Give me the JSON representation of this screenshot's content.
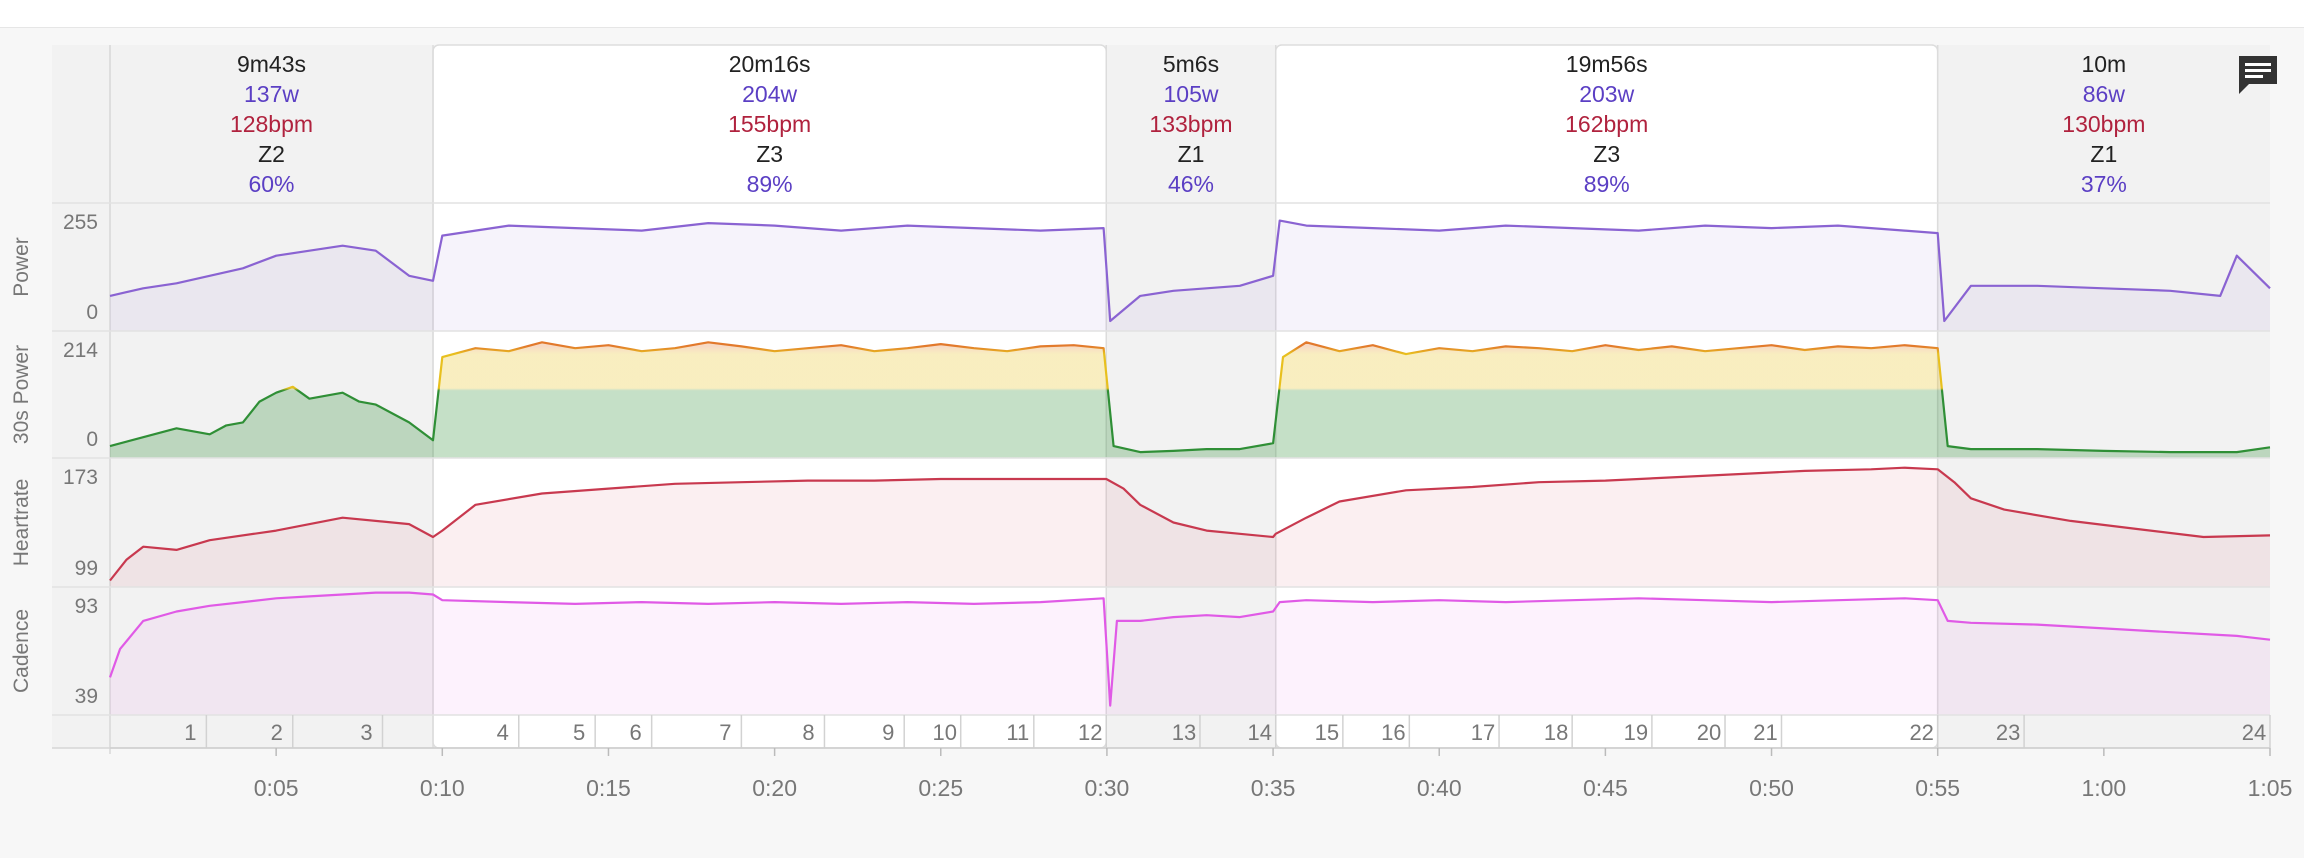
{
  "colors": {
    "power": "#8a63d2",
    "heartrate": "#c8394f",
    "cadence": "#e05ae6",
    "zone_green": "#2f8f36",
    "zone_yellow": "#e8c01e",
    "zone_orange": "#e2792c",
    "label_purple": "#5b3fc4",
    "label_hr": "#b0223e",
    "label_dark": "#1f1f3a",
    "highlight_bg": "#ffffff",
    "panel_bg": "#f2f2f2"
  },
  "comment_icon": "comment-icon",
  "chart_data": {
    "type": "line",
    "x_unit": "minutes",
    "x_range": [
      0,
      65
    ],
    "x_ticks": [
      {
        "t": 5,
        "label": "0:05"
      },
      {
        "t": 10,
        "label": "0:10"
      },
      {
        "t": 15,
        "label": "0:15"
      },
      {
        "t": 20,
        "label": "0:20"
      },
      {
        "t": 25,
        "label": "0:25"
      },
      {
        "t": 30,
        "label": "0:30"
      },
      {
        "t": 35,
        "label": "0:35"
      },
      {
        "t": 40,
        "label": "0:40"
      },
      {
        "t": 45,
        "label": "0:45"
      },
      {
        "t": 50,
        "label": "0:50"
      },
      {
        "t": 55,
        "label": "0:55"
      },
      {
        "t": 60,
        "label": "1:00"
      },
      {
        "t": 65,
        "label": "1:05"
      }
    ],
    "intervals": [
      {
        "start": 0,
        "end": 9.72,
        "duration": "9m43s",
        "power": "137w",
        "hr": "128bpm",
        "zone": "Z2",
        "pct": "60%",
        "highlight": false
      },
      {
        "start": 9.72,
        "end": 29.98,
        "duration": "20m16s",
        "power": "204w",
        "hr": "155bpm",
        "zone": "Z3",
        "pct": "89%",
        "highlight": true
      },
      {
        "start": 29.98,
        "end": 35.08,
        "duration": "5m6s",
        "power": "105w",
        "hr": "133bpm",
        "zone": "Z1",
        "pct": "46%",
        "highlight": false
      },
      {
        "start": 35.08,
        "end": 55.0,
        "duration": "19m56s",
        "power": "203w",
        "hr": "162bpm",
        "zone": "Z3",
        "pct": "89%",
        "highlight": true
      },
      {
        "start": 55.0,
        "end": 65.0,
        "duration": "10m",
        "power": "86w",
        "hr": "130bpm",
        "zone": "Z1",
        "pct": "37%",
        "highlight": false
      }
    ],
    "laps": [
      {
        "label": "1",
        "start": 0,
        "end": 2.9
      },
      {
        "label": "2",
        "start": 2.9,
        "end": 5.5
      },
      {
        "label": "3",
        "start": 5.5,
        "end": 8.2
      },
      {
        "label": "4",
        "start": 9.72,
        "end": 12.3
      },
      {
        "label": "5",
        "start": 12.3,
        "end": 14.6
      },
      {
        "label": "6",
        "start": 14.6,
        "end": 16.3
      },
      {
        "label": "7",
        "start": 16.3,
        "end": 19.0
      },
      {
        "label": "8",
        "start": 19.0,
        "end": 21.5
      },
      {
        "label": "9",
        "start": 21.5,
        "end": 23.9
      },
      {
        "label": "10",
        "start": 23.9,
        "end": 25.6
      },
      {
        "label": "11",
        "start": 25.6,
        "end": 27.8
      },
      {
        "label": "12",
        "start": 27.8,
        "end": 29.98
      },
      {
        "label": "13",
        "start": 29.98,
        "end": 32.8
      },
      {
        "label": "14",
        "start": 32.8,
        "end": 35.08
      },
      {
        "label": "15",
        "start": 35.08,
        "end": 37.1
      },
      {
        "label": "16",
        "start": 37.1,
        "end": 39.1
      },
      {
        "label": "17",
        "start": 39.1,
        "end": 41.8
      },
      {
        "label": "18",
        "start": 41.8,
        "end": 44.0
      },
      {
        "label": "19",
        "start": 44.0,
        "end": 46.4
      },
      {
        "label": "20",
        "start": 46.4,
        "end": 48.6
      },
      {
        "label": "21",
        "start": 48.6,
        "end": 50.3
      },
      {
        "label": "22",
        "start": 50.3,
        "end": 55.0
      },
      {
        "label": "23",
        "start": 55.0,
        "end": 57.6
      },
      {
        "label": "24",
        "start": 57.6,
        "end": 65.0
      }
    ],
    "panels": [
      {
        "id": "power",
        "label": "Power",
        "tick_min": "0",
        "tick_max": "255",
        "ymin": 0,
        "ymax": 255,
        "color": "#8a63d2",
        "x": [
          0,
          1,
          2,
          3,
          4,
          5,
          6,
          7,
          8,
          9,
          9.72,
          10,
          12,
          14,
          16,
          18,
          20,
          22,
          24,
          26,
          28,
          29.9,
          30.1,
          31,
          32,
          33,
          34,
          35,
          35.2,
          36,
          38,
          40,
          42,
          44,
          46,
          48,
          50,
          52,
          54,
          55,
          55.2,
          56,
          58,
          60,
          62,
          63.5,
          64,
          65
        ],
        "y": [
          70,
          85,
          95,
          110,
          125,
          150,
          160,
          170,
          160,
          110,
          100,
          190,
          210,
          205,
          200,
          215,
          210,
          200,
          210,
          205,
          200,
          205,
          20,
          70,
          80,
          85,
          90,
          110,
          220,
          210,
          205,
          200,
          210,
          205,
          200,
          210,
          205,
          210,
          200,
          195,
          20,
          90,
          90,
          85,
          80,
          70,
          150,
          85
        ]
      },
      {
        "id": "power30",
        "label": "30s Power",
        "tick_min": "0",
        "tick_max": "214",
        "ymin": 0,
        "ymax": 214,
        "color": "#2f8f36",
        "zones": true,
        "x": [
          0,
          1,
          2,
          3,
          3.5,
          4,
          4.5,
          5,
          5.5,
          6,
          7,
          7.5,
          8,
          9,
          9.72,
          10,
          11,
          12,
          13,
          14,
          15,
          16,
          17,
          18,
          19,
          20,
          21,
          22,
          23,
          24,
          25,
          26,
          27,
          28,
          29,
          29.9,
          30.2,
          31,
          32,
          33,
          34,
          35,
          35.3,
          36,
          37,
          38,
          39,
          40,
          41,
          42,
          43,
          44,
          45,
          46,
          47,
          48,
          49,
          50,
          51,
          52,
          53,
          54,
          55,
          55.3,
          56,
          58,
          60,
          62,
          64,
          65
        ],
        "y": [
          20,
          35,
          50,
          40,
          55,
          60,
          95,
          110,
          120,
          100,
          110,
          95,
          90,
          60,
          30,
          170,
          185,
          180,
          195,
          185,
          190,
          180,
          185,
          195,
          188,
          180,
          185,
          190,
          180,
          185,
          192,
          185,
          180,
          188,
          190,
          185,
          20,
          10,
          12,
          15,
          15,
          25,
          170,
          195,
          180,
          190,
          175,
          185,
          180,
          188,
          185,
          180,
          190,
          182,
          188,
          180,
          185,
          190,
          182,
          188,
          185,
          190,
          185,
          20,
          15,
          15,
          12,
          10,
          10,
          18
        ]
      },
      {
        "id": "heartrate",
        "label": "Heartrate",
        "tick_min": "99",
        "tick_max": "173",
        "ymin": 95,
        "ymax": 175,
        "color": "#c8394f",
        "x": [
          0,
          0.5,
          1,
          2,
          3,
          5,
          7,
          9,
          9.72,
          10,
          11,
          13,
          15,
          17,
          19,
          21,
          23,
          25,
          27,
          29,
          29.98,
          30.5,
          31,
          32,
          33,
          34,
          35,
          35.08,
          36,
          37,
          39,
          41,
          43,
          45,
          47,
          49,
          51,
          53,
          54,
          55,
          55.5,
          56,
          57,
          59,
          61,
          63,
          65
        ],
        "y": [
          99,
          112,
          120,
          118,
          124,
          130,
          138,
          134,
          126,
          130,
          146,
          153,
          156,
          159,
          160,
          161,
          161,
          162,
          162,
          162,
          162,
          156,
          146,
          135,
          130,
          128,
          126,
          128,
          138,
          148,
          155,
          157,
          160,
          161,
          163,
          165,
          167,
          168,
          169,
          168,
          160,
          150,
          143,
          136,
          131,
          126,
          127
        ]
      },
      {
        "id": "cadence",
        "label": "Cadence",
        "tick_min": "39",
        "tick_max": "93",
        "ymin": 30,
        "ymax": 98,
        "color": "#e05ae6",
        "x": [
          0,
          0.3,
          1,
          2,
          3,
          4,
          5,
          6,
          7,
          8,
          9,
          9.72,
          10,
          12,
          14,
          16,
          18,
          20,
          22,
          24,
          26,
          28,
          29.9,
          30.1,
          30.3,
          31,
          32,
          33,
          34,
          35,
          35.2,
          36,
          38,
          40,
          42,
          44,
          46,
          48,
          50,
          52,
          54,
          55,
          55.3,
          56,
          58,
          60,
          62,
          64,
          65
        ],
        "y": [
          50,
          65,
          80,
          85,
          88,
          90,
          92,
          93,
          94,
          95,
          95,
          94,
          91,
          90,
          89,
          90,
          89,
          90,
          89,
          90,
          89,
          90,
          92,
          35,
          80,
          80,
          82,
          83,
          82,
          85,
          90,
          91,
          90,
          91,
          90,
          91,
          92,
          91,
          90,
          91,
          92,
          91,
          80,
          79,
          78,
          76,
          74,
          72,
          70
        ]
      }
    ]
  }
}
